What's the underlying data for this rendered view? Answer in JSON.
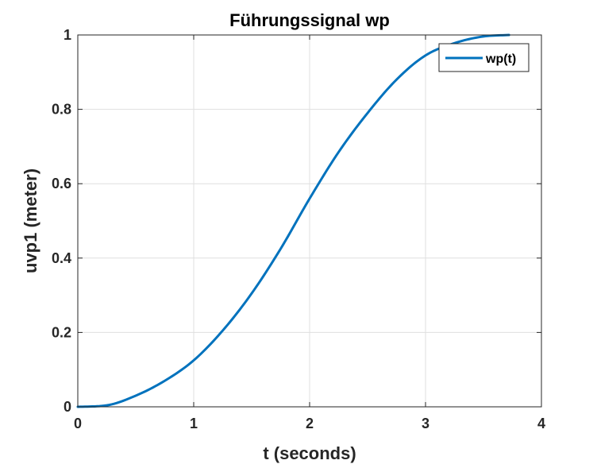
{
  "chart_data": {
    "type": "line",
    "title": "Führungssignal wp",
    "xlabel": "t (seconds)",
    "ylabel": "uvp1 (meter)",
    "xlim": [
      0,
      4
    ],
    "ylim": [
      0,
      1
    ],
    "xticks": [
      0,
      1,
      2,
      3,
      4
    ],
    "yticks": [
      0,
      0.2,
      0.4,
      0.6,
      0.8,
      1
    ],
    "xtick_labels": [
      "0",
      "1",
      "2",
      "3",
      "4"
    ],
    "ytick_labels": [
      "0",
      "0.2",
      "0.4",
      "0.6",
      "0.8",
      "1"
    ],
    "grid": true,
    "legend": {
      "position": "top-right"
    },
    "series": [
      {
        "name": "wp(t)",
        "color": "#0072BD",
        "x": [
          0,
          0.25,
          0.5,
          0.75,
          1.0,
          1.25,
          1.5,
          1.75,
          2.0,
          2.25,
          2.5,
          2.75,
          3.0,
          3.25,
          3.5,
          3.72
        ],
        "y": [
          0,
          0.004,
          0.03,
          0.07,
          0.125,
          0.205,
          0.305,
          0.425,
          0.56,
          0.685,
          0.79,
          0.88,
          0.945,
          0.978,
          0.996,
          1.0
        ]
      }
    ]
  }
}
